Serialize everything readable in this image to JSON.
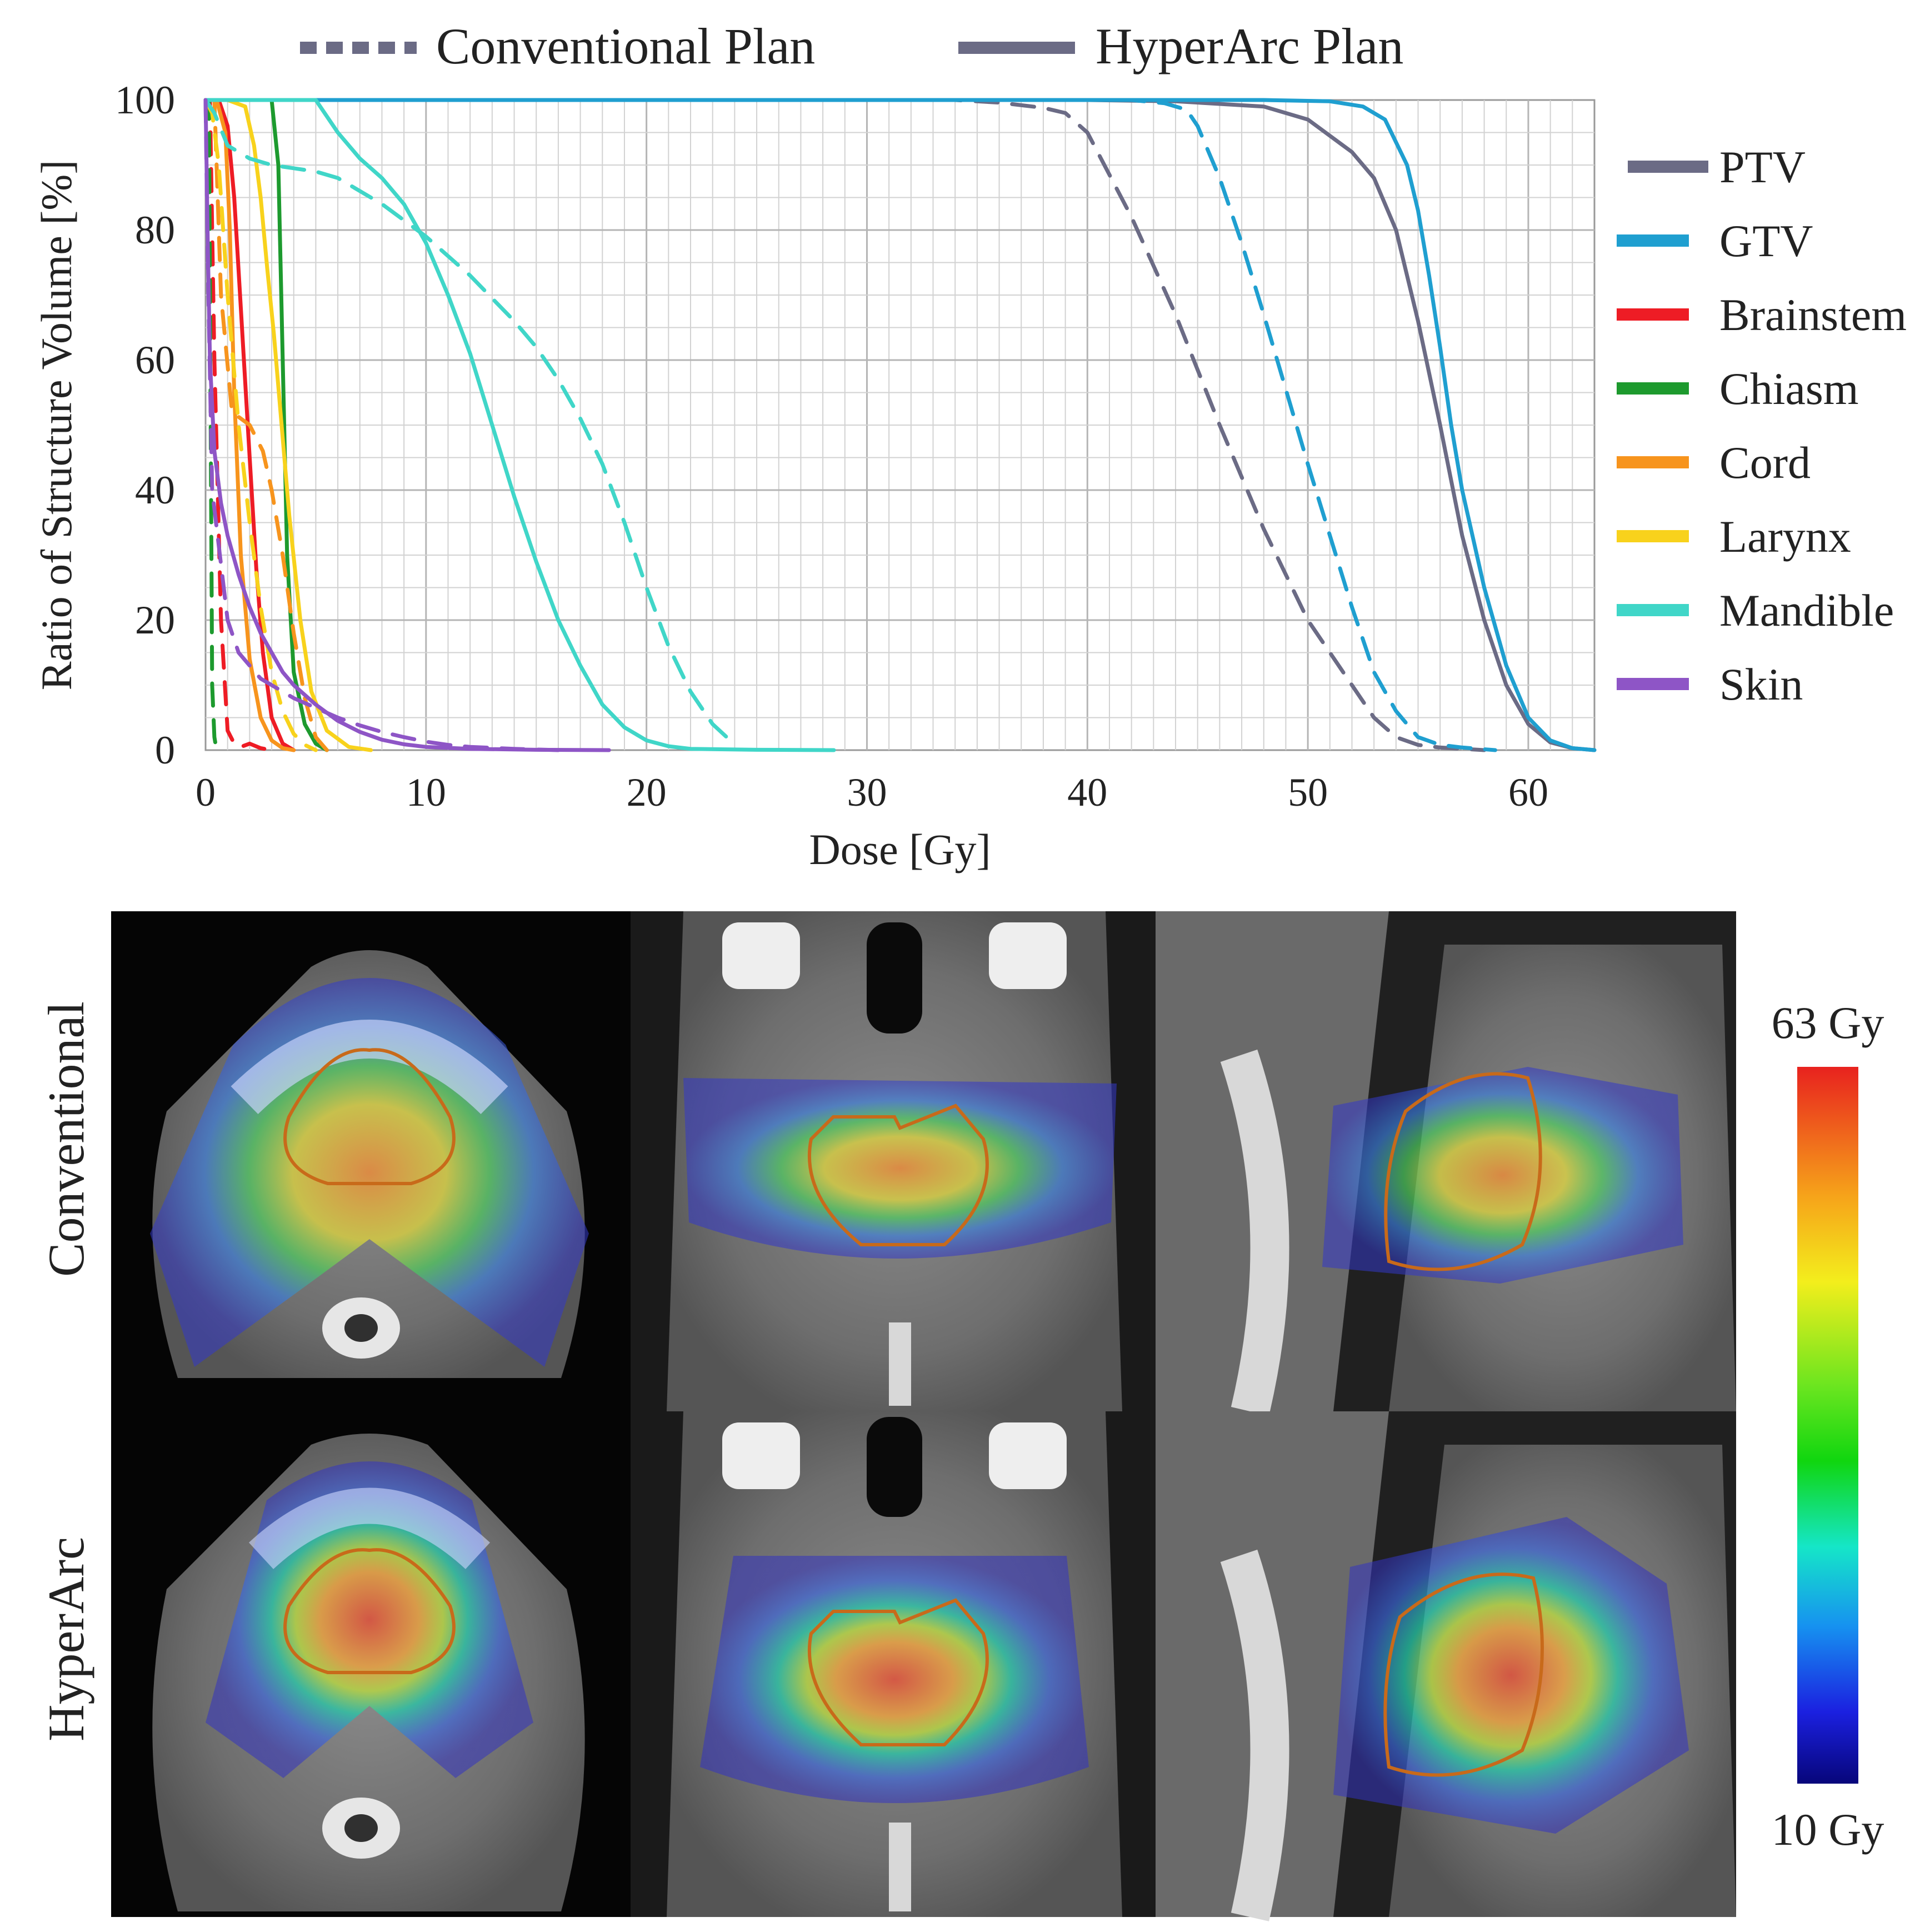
{
  "chart_data": {
    "type": "line",
    "title": "",
    "xlabel": "Dose [Gy]",
    "ylabel": "Ratio of Structure Volume [%]",
    "xlim": [
      0,
      63
    ],
    "ylim": [
      0,
      100
    ],
    "xticks": [
      0,
      10,
      20,
      30,
      40,
      50,
      60
    ],
    "yticks": [
      0,
      20,
      40,
      60,
      80,
      100
    ],
    "grid": true,
    "plan_legend": [
      {
        "label": "Conventional Plan",
        "style": "dashed"
      },
      {
        "label": "HyperArc Plan",
        "style": "solid"
      }
    ],
    "structure_legend_position": "right",
    "structures": [
      {
        "name": "PTV",
        "color": "#6b6b85"
      },
      {
        "name": "GTV",
        "color": "#1f9fd0"
      },
      {
        "name": "Brainstem",
        "color": "#ee1c25"
      },
      {
        "name": "Chiasm",
        "color": "#1d9a2e"
      },
      {
        "name": "Cord",
        "color": "#f7941d"
      },
      {
        "name": "Larynx",
        "color": "#f8d21c"
      },
      {
        "name": "Mandible",
        "color": "#40d6c8"
      },
      {
        "name": "Skin",
        "color": "#8e55c6"
      }
    ],
    "series": [
      {
        "name": "PTV",
        "plan": "HyperArc",
        "x": [
          0,
          40,
          44,
          48,
          50,
          52,
          53,
          54,
          55,
          55.5,
          56,
          57,
          58,
          59,
          60,
          61,
          62,
          63
        ],
        "y": [
          100,
          100,
          99.8,
          99,
          97,
          92,
          88,
          80,
          66,
          58,
          50,
          33,
          20,
          10,
          4,
          1.2,
          0.3,
          0
        ]
      },
      {
        "name": "PTV",
        "plan": "Conventional",
        "x": [
          0,
          34,
          36,
          38,
          39,
          40,
          42,
          44,
          46,
          48,
          50,
          52,
          53,
          54,
          55,
          56,
          58
        ],
        "y": [
          100,
          100,
          99.6,
          98.8,
          98,
          95,
          82,
          67,
          50,
          34,
          20,
          10,
          5,
          2,
          0.8,
          0.4,
          0
        ]
      },
      {
        "name": "GTV",
        "plan": "HyperArc",
        "x": [
          0,
          48,
          51,
          52.5,
          53.5,
          54.5,
          55,
          55.5,
          56,
          56.5,
          57,
          58,
          59,
          60,
          61,
          62,
          63
        ],
        "y": [
          100,
          100,
          99.8,
          99,
          97,
          90,
          83,
          73,
          62,
          50,
          40,
          25,
          13,
          5,
          1.5,
          0.3,
          0
        ]
      },
      {
        "name": "GTV",
        "plan": "Conventional",
        "x": [
          0,
          42,
          43.5,
          44.5,
          45,
          46,
          47,
          48,
          50,
          52,
          53,
          54,
          55,
          56,
          57,
          58.5
        ],
        "y": [
          100,
          100,
          99.5,
          98.5,
          96,
          88,
          78,
          67,
          44,
          22,
          12,
          6,
          2,
          0.8,
          0.4,
          0
        ]
      },
      {
        "name": "Brainstem",
        "plan": "HyperArc",
        "x": [
          0,
          0.6,
          1,
          1.3,
          1.6,
          2,
          2.3,
          2.6,
          3,
          3.5,
          4
        ],
        "y": [
          100,
          100,
          96,
          85,
          68,
          45,
          28,
          15,
          5,
          1,
          0
        ]
      },
      {
        "name": "Brainstem",
        "plan": "Conventional",
        "x": [
          0,
          0.2,
          0.4,
          0.7,
          1,
          1.3,
          1.6,
          2,
          2.5,
          3
        ],
        "y": [
          100,
          100,
          60,
          20,
          3,
          1,
          0.5,
          1,
          0.3,
          0
        ]
      },
      {
        "name": "Chiasm",
        "plan": "HyperArc",
        "x": [
          0,
          3,
          3.3,
          3.5,
          3.7,
          4,
          4.5,
          5,
          5.5
        ],
        "y": [
          100,
          100,
          90,
          60,
          30,
          12,
          4,
          1,
          0
        ]
      },
      {
        "name": "Chiasm",
        "plan": "Conventional",
        "x": [
          0,
          0.15,
          0.25,
          0.3,
          0.4,
          0.5
        ],
        "y": [
          100,
          100,
          40,
          10,
          2,
          0
        ]
      },
      {
        "name": "Cord",
        "plan": "HyperArc",
        "x": [
          0,
          0.5,
          0.9,
          1.1,
          1.3,
          1.6,
          2,
          2.5,
          3,
          3.5,
          4
        ],
        "y": [
          100,
          100,
          95,
          80,
          55,
          30,
          14,
          5,
          1.5,
          0.3,
          0
        ]
      },
      {
        "name": "Cord",
        "plan": "Conventional",
        "x": [
          0,
          0.4,
          0.7,
          1.2,
          2,
          2.6,
          3,
          3.5,
          4,
          4.5,
          5,
          5.5
        ],
        "y": [
          100,
          100,
          70,
          52,
          50,
          46,
          40,
          30,
          18,
          8,
          2,
          0
        ]
      },
      {
        "name": "Larynx",
        "plan": "HyperArc",
        "x": [
          0,
          1,
          1.8,
          2.2,
          2.5,
          2.8,
          3.1,
          3.4,
          3.8,
          4.3,
          4.8,
          5.5,
          6.5,
          7.5
        ],
        "y": [
          100,
          100,
          99,
          93,
          85,
          74,
          64,
          52,
          36,
          20,
          9,
          3,
          0.5,
          0
        ]
      },
      {
        "name": "Larynx",
        "plan": "Conventional",
        "x": [
          0,
          0.3,
          0.6,
          1,
          1.5,
          2,
          2.5,
          3,
          3.5,
          4,
          4.5,
          5
        ],
        "y": [
          100,
          98,
          90,
          70,
          50,
          35,
          22,
          12,
          6,
          2.5,
          0.8,
          0
        ]
      },
      {
        "name": "Mandible",
        "plan": "HyperArc",
        "x": [
          0,
          4,
          5,
          6,
          7,
          8,
          9,
          10,
          11,
          12,
          13,
          14,
          15,
          16,
          17,
          18,
          19,
          20,
          21,
          22,
          25,
          28.5
        ],
        "y": [
          100,
          100,
          100,
          95,
          91,
          88,
          84,
          78,
          70,
          61,
          50,
          39,
          29,
          20,
          13,
          7,
          3.5,
          1.5,
          0.6,
          0.2,
          0.05,
          0
        ]
      },
      {
        "name": "Mandible",
        "plan": "Conventional",
        "x": [
          0,
          0.4,
          1,
          2,
          3,
          4,
          5,
          6,
          8,
          10,
          12,
          14,
          15,
          16,
          17,
          18,
          19,
          20,
          21,
          22,
          23,
          23.8
        ],
        "y": [
          100,
          98,
          93,
          91,
          90,
          89.5,
          89,
          88,
          84,
          79,
          73,
          66,
          62,
          57,
          51,
          44,
          35,
          25,
          16,
          9,
          4,
          1.5
        ]
      },
      {
        "name": "Skin",
        "plan": "HyperArc",
        "x": [
          0,
          0.1,
          0.2,
          0.4,
          0.7,
          1,
          1.5,
          2,
          2.5,
          3,
          3.5,
          4,
          5,
          6,
          7,
          8,
          9,
          10,
          12,
          15,
          18.3
        ],
        "y": [
          100,
          78,
          60,
          46,
          38,
          33,
          27,
          22,
          18,
          15,
          12,
          10,
          7,
          4.5,
          2.8,
          1.6,
          0.9,
          0.5,
          0.2,
          0.05,
          0
        ]
      },
      {
        "name": "Skin",
        "plan": "Conventional",
        "x": [
          0,
          0.1,
          0.3,
          1,
          1.5,
          2,
          2.5,
          3,
          3.5,
          4,
          5,
          6,
          7,
          8,
          9,
          10,
          11,
          12,
          14,
          16
        ],
        "y": [
          100,
          75,
          40,
          20,
          15,
          13,
          11,
          10,
          9,
          8,
          6.5,
          5,
          3.8,
          2.8,
          2,
          1.3,
          0.8,
          0.5,
          0.2,
          0
        ]
      }
    ],
    "dose_maps": {
      "row_labels": [
        "Conventional",
        "HyperArc"
      ],
      "views": [
        "axial",
        "coronal",
        "sagittal"
      ],
      "colorbar": {
        "max_label": "63 Gy",
        "min_label": "10 Gy"
      }
    }
  }
}
